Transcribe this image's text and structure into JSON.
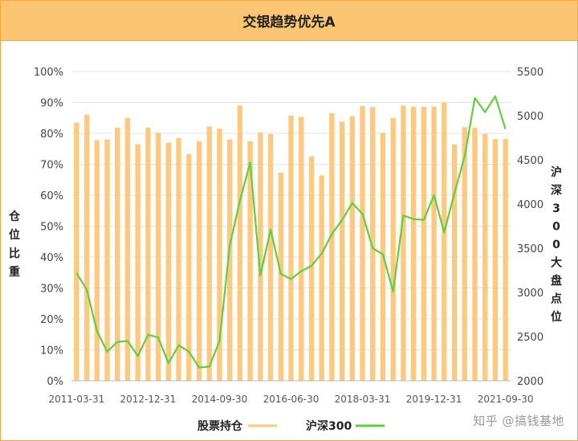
{
  "chart_data": {
    "type": "bar+line",
    "title": "交银趋势优先A",
    "x_tick_labels": [
      "2011-03-31",
      "2012-12-31",
      "2014-09-30",
      "2016-06-30",
      "2018-03-31",
      "2019-12-31",
      "2021-09-30"
    ],
    "y_left": {
      "label": "仓位比重",
      "range": [
        0,
        100
      ],
      "ticks": [
        "0%",
        "10%",
        "20%",
        "30%",
        "40%",
        "50%",
        "60%",
        "70%",
        "80%",
        "90%",
        "100%"
      ]
    },
    "y_right": {
      "label": "沪深300大盘点位",
      "range": [
        2000,
        5500
      ],
      "ticks": [
        "2000",
        "2500",
        "3000",
        "3500",
        "4000",
        "4500",
        "5000",
        "5500"
      ]
    },
    "grid": true,
    "legend_position": "bottom",
    "series": [
      {
        "name": "股票持仓",
        "type": "bar",
        "axis": "left",
        "color": "#fcc97e",
        "values": [
          83.5,
          86,
          77.8,
          78,
          81.8,
          85,
          76.5,
          81.8,
          80.2,
          77,
          78.5,
          73.3,
          77.5,
          82.2,
          81.5,
          78,
          89,
          77.5,
          80.3,
          79.8,
          67.3,
          85.8,
          85.3,
          72.6,
          66.4,
          86.5,
          83.8,
          85.5,
          88.8,
          88.5,
          80.2,
          85,
          89,
          88.6,
          88.6,
          88.6,
          90,
          76.5,
          82,
          81.8,
          79.8,
          78.2,
          78.2
        ]
      },
      {
        "name": "沪深300",
        "type": "line",
        "axis": "right",
        "color": "#5fcf3c",
        "values": [
          3220,
          3030,
          2560,
          2330,
          2440,
          2450,
          2280,
          2520,
          2490,
          2200,
          2400,
          2330,
          2150,
          2160,
          2450,
          3530,
          4040,
          4470,
          3190,
          3710,
          3210,
          3150,
          3240,
          3300,
          3440,
          3660,
          3820,
          4010,
          3890,
          3500,
          3430,
          3010,
          3870,
          3830,
          3820,
          4100,
          3680,
          4120,
          4540,
          5200,
          5040,
          5220,
          4850
        ]
      }
    ]
  },
  "watermark": "知乎 @搞钱基地"
}
